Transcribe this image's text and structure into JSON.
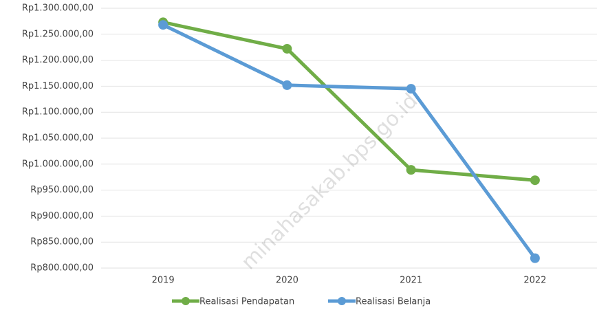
{
  "chart_data": {
    "type": "line",
    "categories": [
      "2019",
      "2020",
      "2021",
      "2022"
    ],
    "series": [
      {
        "name": "Realisasi Pendapatan",
        "color": "#70ad47",
        "values": [
          1273000,
          1222000,
          989000,
          969000
        ]
      },
      {
        "name": "Realisasi Belanja",
        "color": "#5b9bd5",
        "values": [
          1268000,
          1152000,
          1145000,
          819000
        ]
      }
    ],
    "ylim": [
      800000,
      1300000
    ],
    "yticks": [
      {
        "value": 800000,
        "label": "Rp800.000,00"
      },
      {
        "value": 850000,
        "label": "Rp850.000,00"
      },
      {
        "value": 900000,
        "label": "Rp900.000,00"
      },
      {
        "value": 950000,
        "label": "Rp950.000,00"
      },
      {
        "value": 1000000,
        "label": "Rp1.000.000,00"
      },
      {
        "value": 1050000,
        "label": "Rp1.050.000,00"
      },
      {
        "value": 1100000,
        "label": "Rp1.100.000,00"
      },
      {
        "value": 1150000,
        "label": "Rp1.150.000,00"
      },
      {
        "value": 1200000,
        "label": "Rp1.200.000,00"
      },
      {
        "value": 1250000,
        "label": "Rp1.250.000,00"
      },
      {
        "value": 1300000,
        "label": "Rp1.300.000,00"
      }
    ],
    "grid": true,
    "legend": "bottom",
    "watermark": "minahasakab.bps.go.id"
  }
}
